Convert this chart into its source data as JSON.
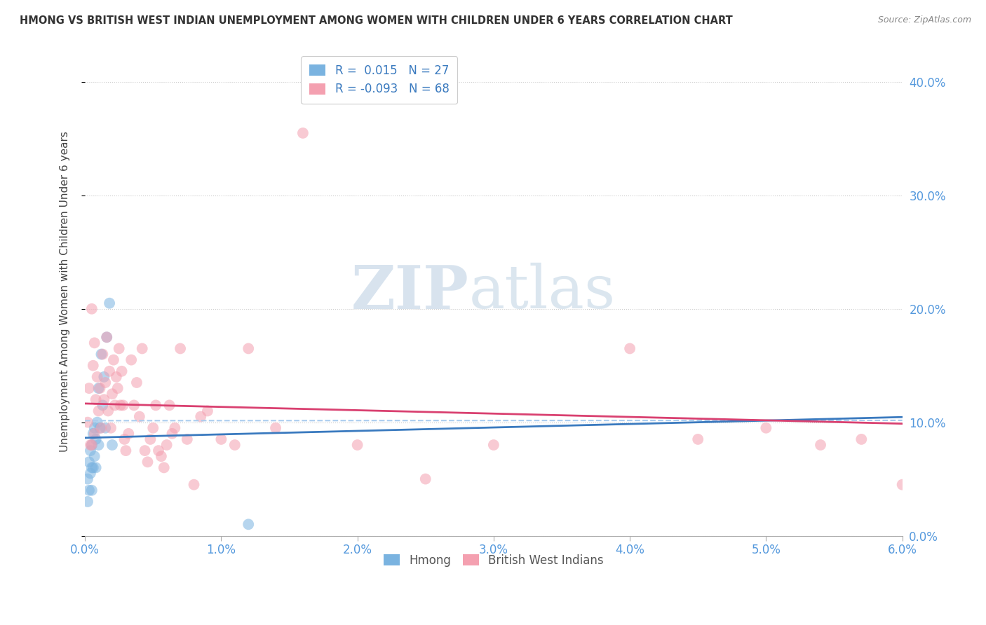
{
  "title": "HMONG VS BRITISH WEST INDIAN UNEMPLOYMENT AMONG WOMEN WITH CHILDREN UNDER 6 YEARS CORRELATION CHART",
  "source": "Source: ZipAtlas.com",
  "ylabel": "Unemployment Among Women with Children Under 6 years",
  "xlim": [
    0.0,
    0.06
  ],
  "ylim": [
    0.0,
    0.43
  ],
  "xtick_labels": [
    "0.0%",
    "1.0%",
    "2.0%",
    "3.0%",
    "4.0%",
    "5.0%",
    "6.0%"
  ],
  "xtick_vals": [
    0.0,
    0.01,
    0.02,
    0.03,
    0.04,
    0.05,
    0.06
  ],
  "ytick_labels_right": [
    "0.0%",
    "10.0%",
    "20.0%",
    "30.0%",
    "40.0%"
  ],
  "ytick_vals": [
    0.0,
    0.1,
    0.2,
    0.3,
    0.4
  ],
  "hmong_color": "#7ab3e0",
  "bwi_color": "#f4a0b0",
  "hmong_line_color": "#3a7abf",
  "bwi_line_color": "#d94070",
  "hmong_R": 0.015,
  "hmong_N": 27,
  "bwi_R": -0.093,
  "bwi_N": 68,
  "legend_label_1": "Hmong",
  "legend_label_2": "British West Indians",
  "watermark_zip": "ZIP",
  "watermark_atlas": "atlas",
  "tick_color": "#5599dd",
  "hmong_x": [
    0.0002,
    0.0002,
    0.0003,
    0.0003,
    0.0004,
    0.0004,
    0.0005,
    0.0005,
    0.0005,
    0.0006,
    0.0006,
    0.0007,
    0.0007,
    0.0008,
    0.0008,
    0.0009,
    0.001,
    0.001,
    0.0011,
    0.0012,
    0.0013,
    0.0014,
    0.0015,
    0.0016,
    0.0018,
    0.002,
    0.012
  ],
  "hmong_y": [
    0.05,
    0.03,
    0.065,
    0.04,
    0.075,
    0.055,
    0.08,
    0.06,
    0.04,
    0.09,
    0.06,
    0.095,
    0.07,
    0.085,
    0.06,
    0.1,
    0.13,
    0.08,
    0.095,
    0.16,
    0.115,
    0.14,
    0.095,
    0.175,
    0.205,
    0.08,
    0.01
  ],
  "bwi_x": [
    0.0002,
    0.0003,
    0.0004,
    0.0005,
    0.0005,
    0.0006,
    0.0007,
    0.0007,
    0.0008,
    0.0009,
    0.001,
    0.0011,
    0.0012,
    0.0013,
    0.0014,
    0.0015,
    0.0016,
    0.0017,
    0.0018,
    0.0019,
    0.002,
    0.0021,
    0.0022,
    0.0023,
    0.0024,
    0.0025,
    0.0026,
    0.0027,
    0.0028,
    0.0029,
    0.003,
    0.0032,
    0.0034,
    0.0036,
    0.0038,
    0.004,
    0.0042,
    0.0044,
    0.0046,
    0.0048,
    0.005,
    0.0052,
    0.0054,
    0.0056,
    0.0058,
    0.006,
    0.0062,
    0.0064,
    0.0066,
    0.007,
    0.0075,
    0.008,
    0.0085,
    0.009,
    0.01,
    0.011,
    0.012,
    0.014,
    0.016,
    0.02,
    0.025,
    0.03,
    0.04,
    0.045,
    0.05,
    0.054,
    0.057,
    0.06
  ],
  "bwi_y": [
    0.1,
    0.13,
    0.08,
    0.2,
    0.08,
    0.15,
    0.17,
    0.09,
    0.12,
    0.14,
    0.11,
    0.13,
    0.095,
    0.16,
    0.12,
    0.135,
    0.175,
    0.11,
    0.145,
    0.095,
    0.125,
    0.155,
    0.115,
    0.14,
    0.13,
    0.165,
    0.115,
    0.145,
    0.115,
    0.085,
    0.075,
    0.09,
    0.155,
    0.115,
    0.135,
    0.105,
    0.165,
    0.075,
    0.065,
    0.085,
    0.095,
    0.115,
    0.075,
    0.07,
    0.06,
    0.08,
    0.115,
    0.09,
    0.095,
    0.165,
    0.085,
    0.045,
    0.105,
    0.11,
    0.085,
    0.08,
    0.165,
    0.095,
    0.355,
    0.08,
    0.05,
    0.08,
    0.165,
    0.085,
    0.095,
    0.08,
    0.085,
    0.045
  ]
}
